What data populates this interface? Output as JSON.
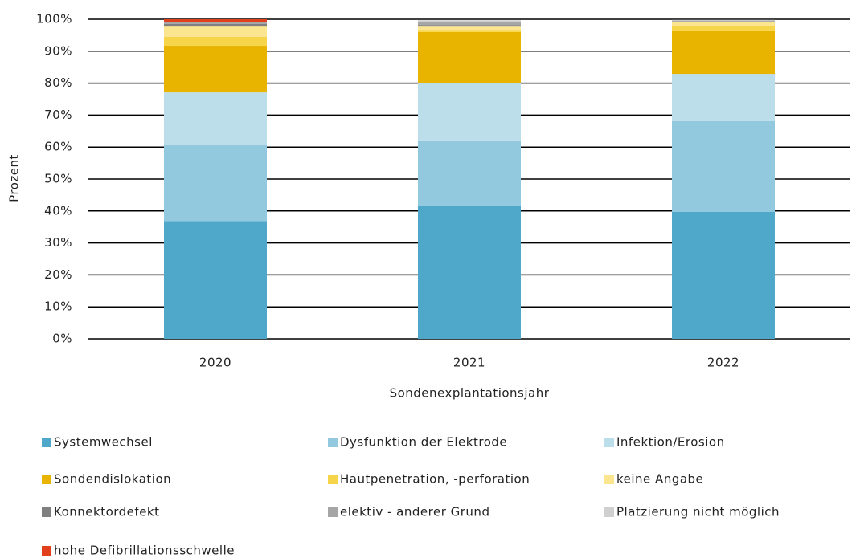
{
  "chart_data": {
    "type": "stacked-bar",
    "y_label": "Prozent",
    "x_label": "Sondenexplantationsjahr",
    "categories": [
      "2020",
      "2021",
      "2022"
    ],
    "ylim": [
      0,
      100
    ],
    "yticks": [
      {
        "value": 0,
        "label": "0%"
      },
      {
        "value": 10,
        "label": "10%"
      },
      {
        "value": 20,
        "label": "20%"
      },
      {
        "value": 30,
        "label": "30%"
      },
      {
        "value": 40,
        "label": "40%"
      },
      {
        "value": 50,
        "label": "50%"
      },
      {
        "value": 60,
        "label": "60%"
      },
      {
        "value": 70,
        "label": "70%"
      },
      {
        "value": 80,
        "label": "80%"
      },
      {
        "value": 90,
        "label": "90%"
      },
      {
        "value": 100,
        "label": "100%"
      }
    ],
    "grid": true,
    "series": [
      {
        "name": "Systemwechsel",
        "color": "#4fa8c9",
        "values": [
          36.8,
          41.5,
          39.7
        ]
      },
      {
        "name": "Dysfunktion der Elektrode",
        "color": "#93c9df",
        "values": [
          23.8,
          20.6,
          28.4
        ]
      },
      {
        "name": "Infektion/Erosion",
        "color": "#bcdeeb",
        "values": [
          16.5,
          17.8,
          14.8
        ]
      },
      {
        "name": "Sondendislokation",
        "color": "#e8b400",
        "values": [
          14.6,
          16.1,
          13.6
        ]
      },
      {
        "name": "Hautpenetration, -perforation",
        "color": "#f7d54a",
        "values": [
          2.8,
          0.7,
          1.5
        ]
      },
      {
        "name": "keine Angabe",
        "color": "#fbe58e",
        "values": [
          3.2,
          1.0,
          1.0
        ]
      },
      {
        "name": "Konnektordefekt",
        "color": "#7f7f7f",
        "values": [
          0.8,
          0.5,
          0.3
        ]
      },
      {
        "name": "elektiv - anderer Grund",
        "color": "#a6a6a6",
        "values": [
          0.5,
          0.8,
          0.3
        ]
      },
      {
        "name": "Platzierung nicht möglich",
        "color": "#d0d0d0",
        "values": [
          0.2,
          0.7,
          0.2
        ]
      },
      {
        "name": "hohe Defibrillationsschwelle",
        "color": "#e2401c",
        "values": [
          0.8,
          0,
          0
        ]
      }
    ]
  }
}
